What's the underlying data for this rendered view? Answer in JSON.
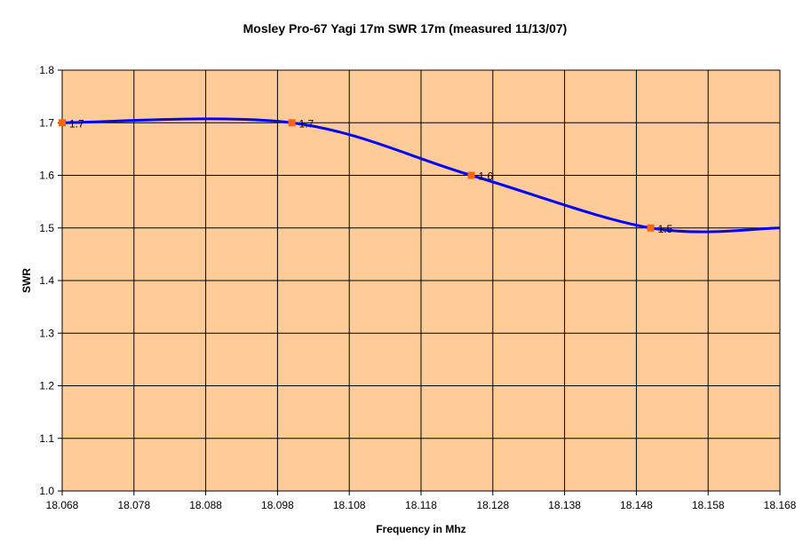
{
  "chart_data": {
    "type": "line",
    "title": "Mosley Pro-67 Yagi 17m SWR 17m (measured 11/13/07)",
    "xlabel": "Frequency in Mhz",
    "ylabel": "SWR",
    "xlim": [
      18.068,
      18.168
    ],
    "ylim": [
      1.0,
      1.8
    ],
    "x_ticks": [
      "18.068",
      "18.078",
      "18.088",
      "18.098",
      "18.108",
      "18.118",
      "18.128",
      "18.138",
      "18.148",
      "18.158",
      "18.168"
    ],
    "y_ticks": [
      "1.0",
      "1.1",
      "1.2",
      "1.3",
      "1.4",
      "1.5",
      "1.6",
      "1.7",
      "1.8"
    ],
    "grid": true,
    "smoothed": true,
    "series": [
      {
        "name": "SWR",
        "line_points": [
          [
            18.068,
            1.7
          ],
          [
            18.1,
            1.7
          ],
          [
            18.125,
            1.6
          ],
          [
            18.15,
            1.5
          ],
          [
            18.168,
            1.5
          ]
        ],
        "markers": [
          {
            "x": 18.068,
            "y": 1.7,
            "label": "1.7"
          },
          {
            "x": 18.1,
            "y": 1.7,
            "label": "1.7"
          },
          {
            "x": 18.125,
            "y": 1.6,
            "label": "1.6"
          },
          {
            "x": 18.15,
            "y": 1.5,
            "label": "1.5"
          }
        ],
        "line_color": "#0000FF",
        "marker_color": "#FF6600"
      }
    ],
    "plot_background": "#FFCC99"
  }
}
